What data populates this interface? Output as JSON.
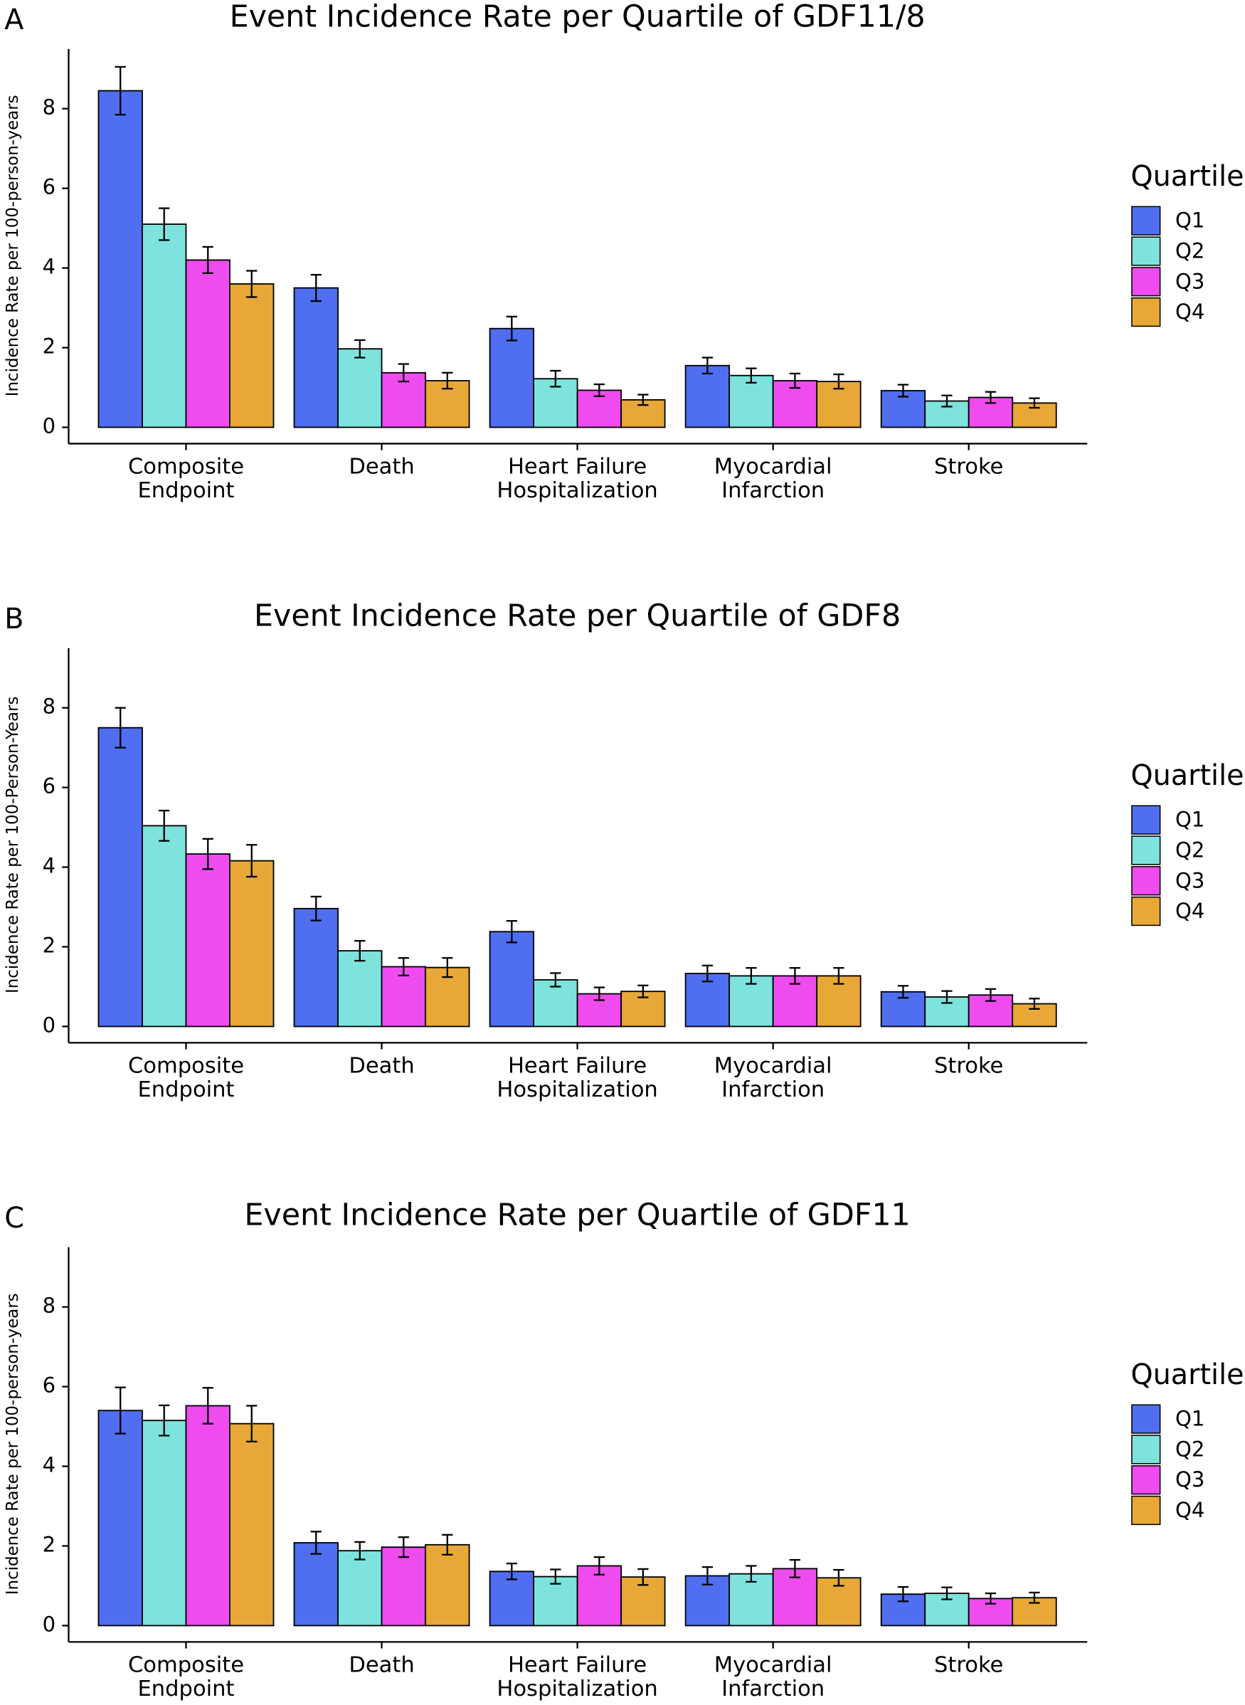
{
  "chart_data": [
    {
      "type": "bar",
      "panel": "A",
      "title": "Event Incidence Rate per Quartile of GDF11/8",
      "y_label": "Incidence Rate per 100-person-years",
      "legend_title": "Quartile",
      "categories": [
        [
          "Composite",
          "Endpoint"
        ],
        [
          "Death"
        ],
        [
          "Heart Failure",
          "Hospitalization"
        ],
        [
          "Myocardial",
          "Infarction"
        ],
        [
          "Stroke"
        ]
      ],
      "ylim": [
        -0.41,
        9.5
      ],
      "yticks": [
        0,
        2,
        4,
        6,
        8
      ],
      "series": [
        {
          "name": "Q1",
          "color": "#4f6ef0",
          "values": [
            8.45,
            3.5,
            2.48,
            1.55,
            0.92
          ],
          "errors": [
            0.6,
            0.33,
            0.3,
            0.2,
            0.15
          ]
        },
        {
          "name": "Q2",
          "color": "#7de3dc",
          "values": [
            5.1,
            1.97,
            1.22,
            1.3,
            0.66
          ],
          "errors": [
            0.4,
            0.22,
            0.2,
            0.18,
            0.14
          ]
        },
        {
          "name": "Q3",
          "color": "#ee4cee",
          "values": [
            4.2,
            1.37,
            0.93,
            1.17,
            0.75
          ],
          "errors": [
            0.33,
            0.22,
            0.15,
            0.18,
            0.14
          ]
        },
        {
          "name": "Q4",
          "color": "#e8a838",
          "values": [
            3.6,
            1.17,
            0.69,
            1.15,
            0.61
          ],
          "errors": [
            0.33,
            0.2,
            0.13,
            0.18,
            0.12
          ]
        }
      ]
    },
    {
      "type": "bar",
      "panel": "B",
      "title": "Event Incidence Rate per Quartile of GDF8",
      "y_label": "Incidence Rate per 100-Person-Years",
      "legend_title": "Quartile",
      "categories": [
        [
          "Composite",
          "Endpoint"
        ],
        [
          "Death"
        ],
        [
          "Heart Failure",
          "Hospitalization"
        ],
        [
          "Myocardial",
          "Infarction"
        ],
        [
          "Stroke"
        ]
      ],
      "ylim": [
        -0.41,
        9.5
      ],
      "yticks": [
        0,
        2,
        4,
        6,
        8
      ],
      "series": [
        {
          "name": "Q1",
          "color": "#4f6ef0",
          "values": [
            7.5,
            2.96,
            2.38,
            1.33,
            0.87
          ],
          "errors": [
            0.5,
            0.3,
            0.27,
            0.2,
            0.15
          ]
        },
        {
          "name": "Q2",
          "color": "#7de3dc",
          "values": [
            5.04,
            1.9,
            1.17,
            1.27,
            0.74
          ],
          "errors": [
            0.38,
            0.25,
            0.17,
            0.2,
            0.15
          ]
        },
        {
          "name": "Q3",
          "color": "#ee4cee",
          "values": [
            4.33,
            1.5,
            0.82,
            1.27,
            0.79
          ],
          "errors": [
            0.38,
            0.22,
            0.16,
            0.2,
            0.15
          ]
        },
        {
          "name": "Q4",
          "color": "#e8a838",
          "values": [
            4.16,
            1.48,
            0.88,
            1.27,
            0.57
          ],
          "errors": [
            0.4,
            0.24,
            0.15,
            0.2,
            0.13
          ]
        }
      ]
    },
    {
      "type": "bar",
      "panel": "C",
      "title": "Event Incidence Rate per Quartile of GDF11",
      "y_label": "Incidence Rate per 100-person-years",
      "legend_title": "Quartile",
      "categories": [
        [
          "Composite",
          "Endpoint"
        ],
        [
          "Death"
        ],
        [
          "Heart Failure",
          "Hospitalization"
        ],
        [
          "Myocardial",
          "Infarction"
        ],
        [
          "Stroke"
        ]
      ],
      "ylim": [
        -0.41,
        9.5
      ],
      "yticks": [
        0,
        2,
        4,
        6,
        8
      ],
      "series": [
        {
          "name": "Q1",
          "color": "#4f6ef0",
          "values": [
            5.4,
            2.08,
            1.36,
            1.25,
            0.79
          ],
          "errors": [
            0.58,
            0.28,
            0.2,
            0.22,
            0.18
          ]
        },
        {
          "name": "Q2",
          "color": "#7de3dc",
          "values": [
            5.15,
            1.88,
            1.23,
            1.3,
            0.81
          ],
          "errors": [
            0.38,
            0.22,
            0.18,
            0.2,
            0.15
          ]
        },
        {
          "name": "Q3",
          "color": "#ee4cee",
          "values": [
            5.52,
            1.97,
            1.5,
            1.43,
            0.68
          ],
          "errors": [
            0.45,
            0.25,
            0.22,
            0.22,
            0.13
          ]
        },
        {
          "name": "Q4",
          "color": "#e8a838",
          "values": [
            5.07,
            2.03,
            1.22,
            1.2,
            0.7
          ],
          "errors": [
            0.45,
            0.25,
            0.2,
            0.2,
            0.13
          ]
        }
      ]
    }
  ]
}
